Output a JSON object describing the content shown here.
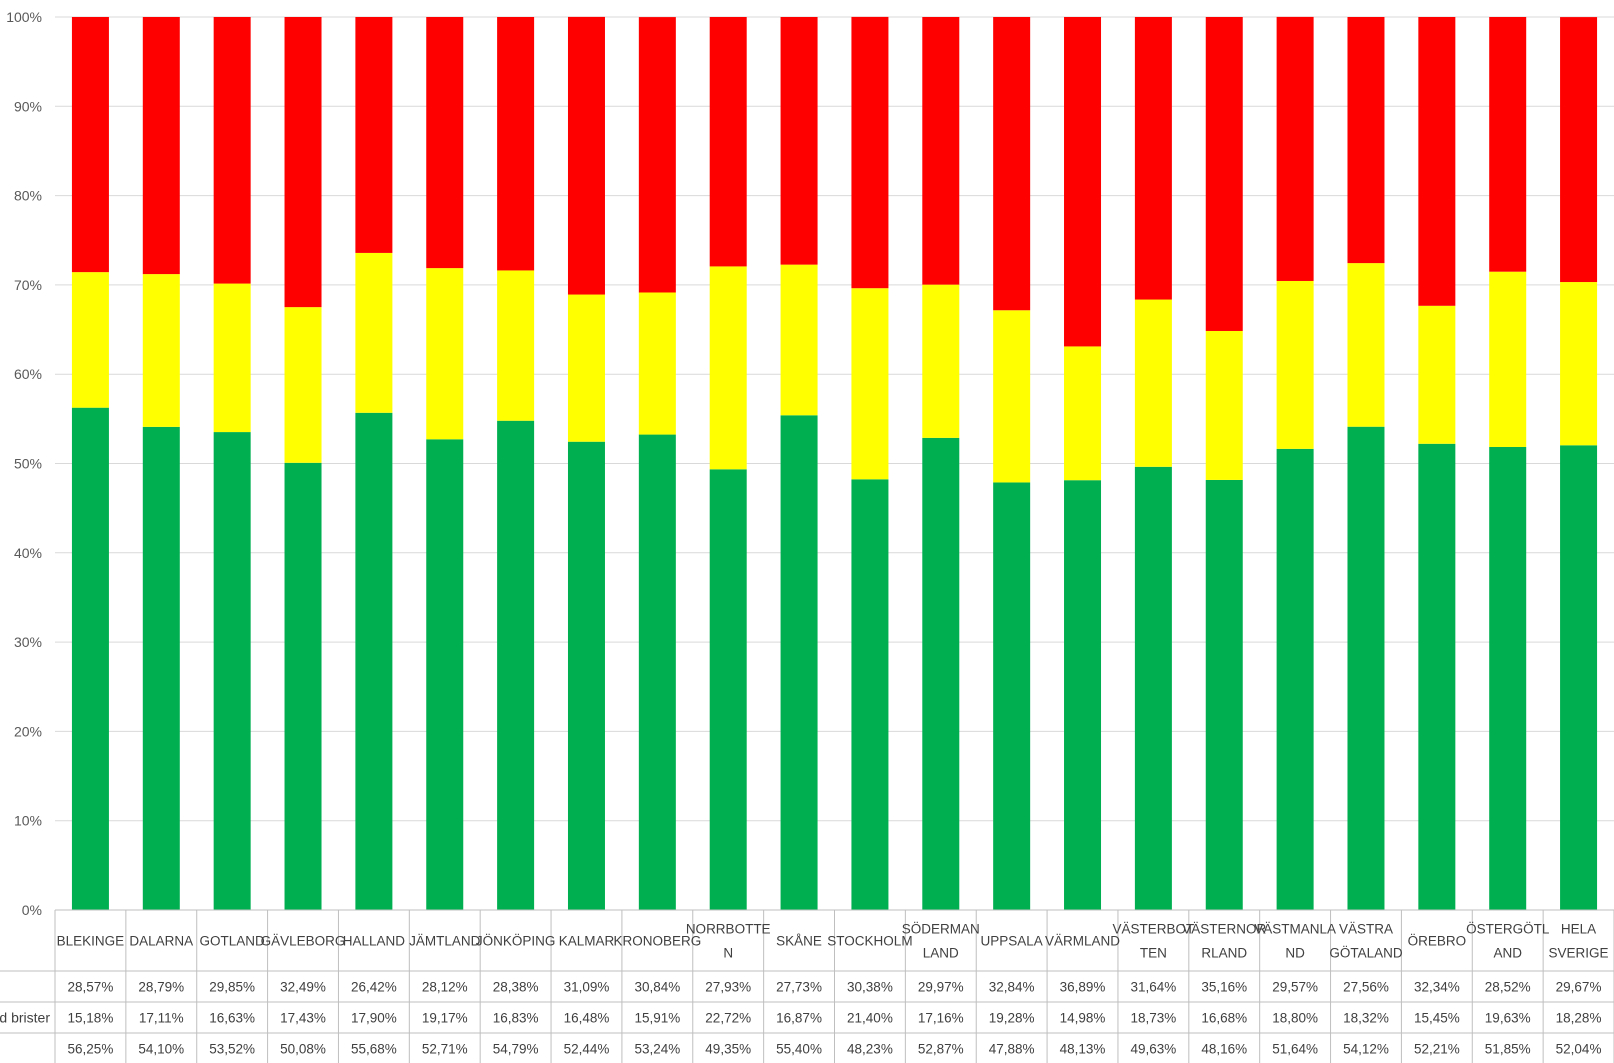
{
  "chart_data": {
    "type": "bar",
    "stacked": true,
    "percent_axis": true,
    "ylim": [
      0,
      100
    ],
    "yticks": [
      "0%",
      "10%",
      "20%",
      "30%",
      "40%",
      "50%",
      "60%",
      "70%",
      "80%",
      "90%",
      "100%"
    ],
    "grid": true,
    "categories": [
      [
        "BLEKINGE"
      ],
      [
        "DALARNA"
      ],
      [
        "GOTLAND"
      ],
      [
        "GÄVLEBORG"
      ],
      [
        "HALLAND"
      ],
      [
        "JÄMTLAND"
      ],
      [
        "JÖNKÖPING"
      ],
      [
        "KALMAR"
      ],
      [
        "KRONOBERG"
      ],
      [
        "NORRBOTTE",
        "N"
      ],
      [
        "SKÅNE"
      ],
      [
        "STOCKHOLM"
      ],
      [
        "SÖDERMAN",
        "LAND"
      ],
      [
        "UPPSALA"
      ],
      [
        "VÄRMLAND"
      ],
      [
        "VÄSTERBOT",
        "TEN"
      ],
      [
        "VÄSTERNOR",
        "RLAND"
      ],
      [
        "VÄSTMANLA",
        "ND"
      ],
      [
        "VÄSTRA",
        "GÖTALAND"
      ],
      [
        "ÖREBRO"
      ],
      [
        "ÖSTERGÖTL",
        "AND"
      ],
      [
        "HELA",
        "SVERIGE"
      ]
    ],
    "series": [
      {
        "color": "#00B050",
        "label": "",
        "values": [
          56.25,
          54.1,
          53.52,
          50.08,
          55.68,
          52.71,
          54.79,
          52.44,
          53.24,
          49.35,
          55.4,
          48.23,
          52.87,
          47.88,
          48.13,
          49.63,
          48.16,
          51.64,
          54.12,
          52.21,
          51.85,
          52.04
        ],
        "labels": [
          "56,25%",
          "54,10%",
          "53,52%",
          "50,08%",
          "55,68%",
          "52,71%",
          "54,79%",
          "52,44%",
          "53,24%",
          "49,35%",
          "55,40%",
          "48,23%",
          "52,87%",
          "47,88%",
          "48,13%",
          "49,63%",
          "48,16%",
          "51,64%",
          "54,12%",
          "52,21%",
          "51,85%",
          "52,04%"
        ]
      },
      {
        "color": "#FFFF00",
        "label": "ed brister",
        "values": [
          15.18,
          17.11,
          16.63,
          17.43,
          17.9,
          19.17,
          16.83,
          16.48,
          15.91,
          22.72,
          16.87,
          21.4,
          17.16,
          19.28,
          14.98,
          18.73,
          16.68,
          18.8,
          18.32,
          15.45,
          19.63,
          18.28
        ],
        "labels": [
          "15,18%",
          "17,11%",
          "16,63%",
          "17,43%",
          "17,90%",
          "19,17%",
          "16,83%",
          "16,48%",
          "15,91%",
          "22,72%",
          "16,87%",
          "21,40%",
          "17,16%",
          "19,28%",
          "14,98%",
          "18,73%",
          "16,68%",
          "18,80%",
          "18,32%",
          "15,45%",
          "19,63%",
          "18,28%"
        ]
      },
      {
        "color": "#FF0000",
        "label": "",
        "values": [
          28.57,
          28.79,
          29.85,
          32.49,
          26.42,
          28.12,
          28.38,
          31.09,
          30.84,
          27.93,
          27.73,
          30.38,
          29.97,
          32.84,
          36.89,
          31.64,
          35.16,
          29.57,
          27.56,
          32.34,
          28.52,
          29.67
        ],
        "labels": [
          "28,57%",
          "28,79%",
          "29,85%",
          "32,49%",
          "26,42%",
          "28,12%",
          "28,38%",
          "31,09%",
          "30,84%",
          "27,93%",
          "27,73%",
          "30,38%",
          "29,97%",
          "32,84%",
          "36,89%",
          "31,64%",
          "35,16%",
          "29,57%",
          "27,56%",
          "32,34%",
          "28,52%",
          "29,67%"
        ]
      }
    ],
    "table_row_order": [
      2,
      1,
      0
    ]
  }
}
